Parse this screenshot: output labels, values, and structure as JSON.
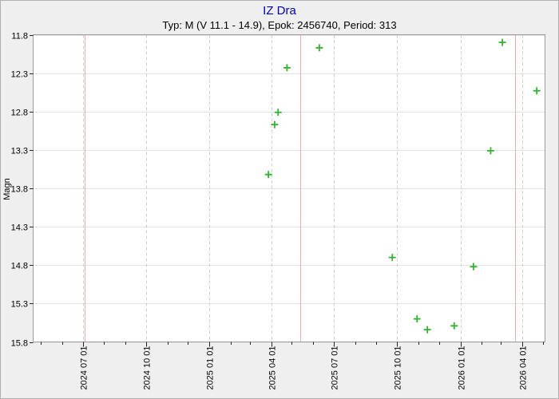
{
  "chart": {
    "title": "IZ Dra",
    "subtitle": "Typ: M (V 11.1 - 14.9), Epok: 2456740, Period: 313",
    "y_axis_label": "Magn"
  },
  "chart_data": {
    "type": "scatter",
    "title": "IZ Dra",
    "subtitle": "Typ: M (V 11.1 - 14.9), Epok: 2456740, Period: 313",
    "star": {
      "name": "IZ Dra",
      "variability_type": "M",
      "v_magnitude_range": "11.1 - 14.9",
      "epoch": 2456740,
      "period_days": 313
    },
    "marker": {
      "shape": "plus",
      "color": "#2db42d",
      "size": 9
    },
    "x_axis": {
      "type": "date",
      "domain_start": "2024-04-20",
      "domain_end": "2026-05-04",
      "major_ticks": [
        {
          "date": "2024-07-01",
          "label": "2024 07 01"
        },
        {
          "date": "2024-10-01",
          "label": "2024 10 01"
        },
        {
          "date": "2025-01-01",
          "label": "2025 01 01"
        },
        {
          "date": "2025-04-01",
          "label": "2025 04 01"
        },
        {
          "date": "2025-07-01",
          "label": "2025 07 01"
        },
        {
          "date": "2025-10-01",
          "label": "2025 10 01"
        },
        {
          "date": "2026-01-01",
          "label": "2026 01 01"
        },
        {
          "date": "2026-04-01",
          "label": "2026 04 01"
        }
      ],
      "minor_ticks": [
        "2024-05-01",
        "2024-06-01",
        "2024-08-01",
        "2024-09-01",
        "2024-11-01",
        "2024-12-01",
        "2025-02-01",
        "2025-03-01",
        "2025-05-01",
        "2025-06-01",
        "2025-08-01",
        "2025-09-01",
        "2025-11-01",
        "2025-12-01",
        "2026-02-01",
        "2026-03-01",
        "2026-05-01"
      ],
      "label_rotation_deg": -90,
      "gridline_style": "dashed"
    },
    "y_axis": {
      "label": "Magn",
      "min": 11.8,
      "max": 15.8,
      "inverted_brightness": true,
      "ticks": [
        "11.8",
        "12.3",
        "12.8",
        "13.3",
        "13.8",
        "14.3",
        "14.8",
        "15.3",
        "15.8"
      ],
      "gridline_style": "solid"
    },
    "period_marker_lines": {
      "meaning": "predicted maxima, spaced by period 313 days",
      "color": "#f2aaaa",
      "dates": [
        "2024-07-04",
        "2025-05-13",
        "2026-03-22"
      ]
    },
    "points": [
      {
        "date": "2025-03-28",
        "mag": 13.62
      },
      {
        "date": "2025-04-06",
        "mag": 12.97
      },
      {
        "date": "2025-04-11",
        "mag": 12.81
      },
      {
        "date": "2025-04-24",
        "mag": 12.23
      },
      {
        "date": "2025-06-10",
        "mag": 11.97
      },
      {
        "date": "2025-09-24",
        "mag": 14.7
      },
      {
        "date": "2025-10-30",
        "mag": 15.5
      },
      {
        "date": "2025-11-14",
        "mag": 15.64
      },
      {
        "date": "2025-12-23",
        "mag": 15.59
      },
      {
        "date": "2026-01-20",
        "mag": 14.82
      },
      {
        "date": "2026-02-14",
        "mag": 13.31
      },
      {
        "date": "2026-03-03",
        "mag": 11.9
      },
      {
        "date": "2026-04-22",
        "mag": 12.53
      }
    ],
    "legend": null,
    "colors": {
      "figure_bg": "#f0efef",
      "plot_bg": "#ffffff",
      "grid_horizontal": "#e4e4e4",
      "grid_vertical": "#cdcdcd",
      "plot_border": "#9c9c9c",
      "tick": "#222222",
      "tick_label": "#000000",
      "title": "#0000bd"
    }
  }
}
